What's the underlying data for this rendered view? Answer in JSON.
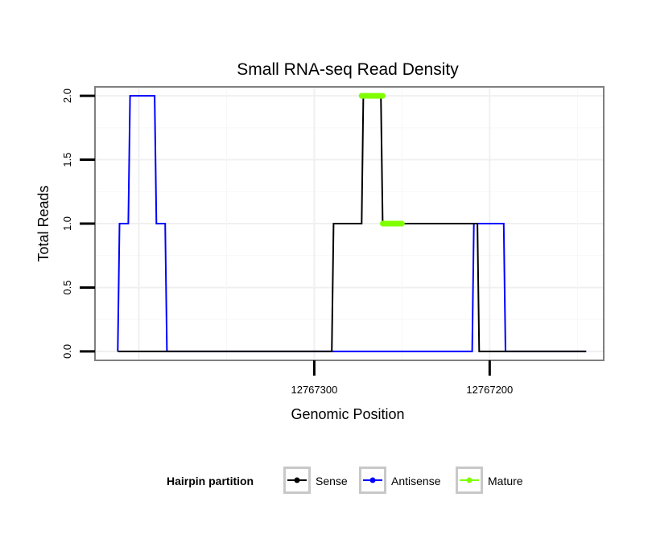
{
  "chart_data": {
    "type": "line",
    "title": "Small RNA-seq Read Density",
    "xlabel": "Genomic Position",
    "ylabel": "Total Reads",
    "x_reversed": true,
    "xlim": [
      12767425,
      12767135
    ],
    "ylim": [
      -0.07,
      2.07
    ],
    "x_ticks": [
      12767300,
      12767200
    ],
    "x_tick_labels": [
      "12767300",
      "12767200"
    ],
    "y_ticks": [
      0.0,
      0.5,
      1.0,
      1.5,
      2.0
    ],
    "y_tick_labels": [
      "0.0",
      "0.5",
      "1.0",
      "1.5",
      "2.0"
    ],
    "grid": true,
    "legend": {
      "title": "Hairpin partition",
      "position": "bottom",
      "entries": [
        {
          "label": "Sense",
          "color": "#000000"
        },
        {
          "label": "Antisense",
          "color": "#0000ff"
        },
        {
          "label": "Mature",
          "color": "#7fff00"
        }
      ]
    },
    "series": [
      {
        "name": "Antisense",
        "color": "#0000ff",
        "points": [
          [
            12767412,
            0
          ],
          [
            12767411,
            1
          ],
          [
            12767406,
            1
          ],
          [
            12767405,
            2
          ],
          [
            12767391,
            2
          ],
          [
            12767390,
            1
          ],
          [
            12767385,
            1
          ],
          [
            12767384,
            0
          ],
          [
            12767290,
            0
          ],
          [
            12767210,
            0
          ],
          [
            12767209,
            1
          ],
          [
            12767192,
            1
          ],
          [
            12767191,
            0
          ],
          [
            12767145,
            0
          ]
        ]
      },
      {
        "name": "Sense",
        "color": "#000000",
        "points": [
          [
            12767412,
            0
          ],
          [
            12767290,
            0
          ],
          [
            12767289,
            1
          ],
          [
            12767273,
            1
          ],
          [
            12767272,
            2
          ],
          [
            12767262,
            2
          ],
          [
            12767261,
            1
          ],
          [
            12767207,
            1
          ],
          [
            12767206,
            0
          ],
          [
            12767145,
            0
          ]
        ]
      },
      {
        "name": "Mature",
        "color": "#7fff00",
        "segments": [
          {
            "x_start": 12767273,
            "x_end": 12767261,
            "y": 2
          },
          {
            "x_start": 12767261,
            "x_end": 12767250,
            "y": 1
          }
        ]
      }
    ]
  }
}
